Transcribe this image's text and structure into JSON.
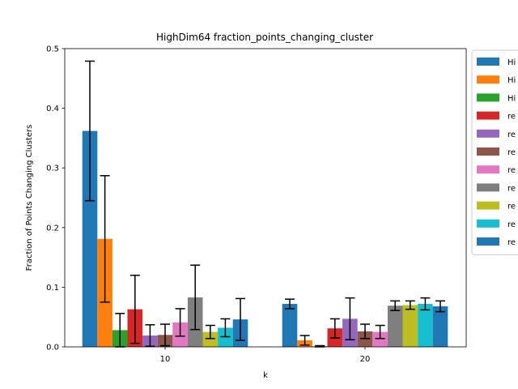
{
  "chart_data": {
    "type": "bar",
    "title": "HighDim64 fraction_points_changing_cluster",
    "xlabel": "k",
    "ylabel": "Fraction of Points Changing Clusters",
    "categories": [
      "10",
      "20"
    ],
    "ylim": [
      0,
      0.5
    ],
    "yticks": [
      "0.0",
      "0.1",
      "0.2",
      "0.3",
      "0.4",
      "0.5"
    ],
    "legend_placement": "outside-right-top",
    "series": [
      {
        "name": "Hi",
        "color": "#1f77b4",
        "values": [
          0.362,
          0.072
        ],
        "errors": [
          0.117,
          0.008
        ]
      },
      {
        "name": "Hi",
        "color": "#ff7f0e",
        "values": [
          0.181,
          0.011
        ],
        "errors": [
          0.106,
          0.008
        ]
      },
      {
        "name": "Hi",
        "color": "#2ca02c",
        "values": [
          0.028,
          0.001
        ],
        "errors": [
          0.028,
          0.001
        ]
      },
      {
        "name": "re",
        "color": "#d62728",
        "values": [
          0.063,
          0.031
        ],
        "errors": [
          0.057,
          0.016
        ]
      },
      {
        "name": "re",
        "color": "#9467bd",
        "values": [
          0.019,
          0.047
        ],
        "errors": [
          0.018,
          0.035
        ]
      },
      {
        "name": "re",
        "color": "#8c564b",
        "values": [
          0.02,
          0.026
        ],
        "errors": [
          0.018,
          0.012
        ]
      },
      {
        "name": "re",
        "color": "#e377c2",
        "values": [
          0.041,
          0.025
        ],
        "errors": [
          0.023,
          0.011
        ]
      },
      {
        "name": "re",
        "color": "#7f7f7f",
        "values": [
          0.083,
          0.069
        ],
        "errors": [
          0.054,
          0.008
        ]
      },
      {
        "name": "re",
        "color": "#bcbd22",
        "values": [
          0.025,
          0.07
        ],
        "errors": [
          0.011,
          0.007
        ]
      },
      {
        "name": "re",
        "color": "#17becf",
        "values": [
          0.032,
          0.072
        ],
        "errors": [
          0.015,
          0.01
        ]
      },
      {
        "name": "re",
        "color": "#1f77b4",
        "values": [
          0.046,
          0.068
        ],
        "errors": [
          0.035,
          0.009
        ]
      }
    ]
  }
}
